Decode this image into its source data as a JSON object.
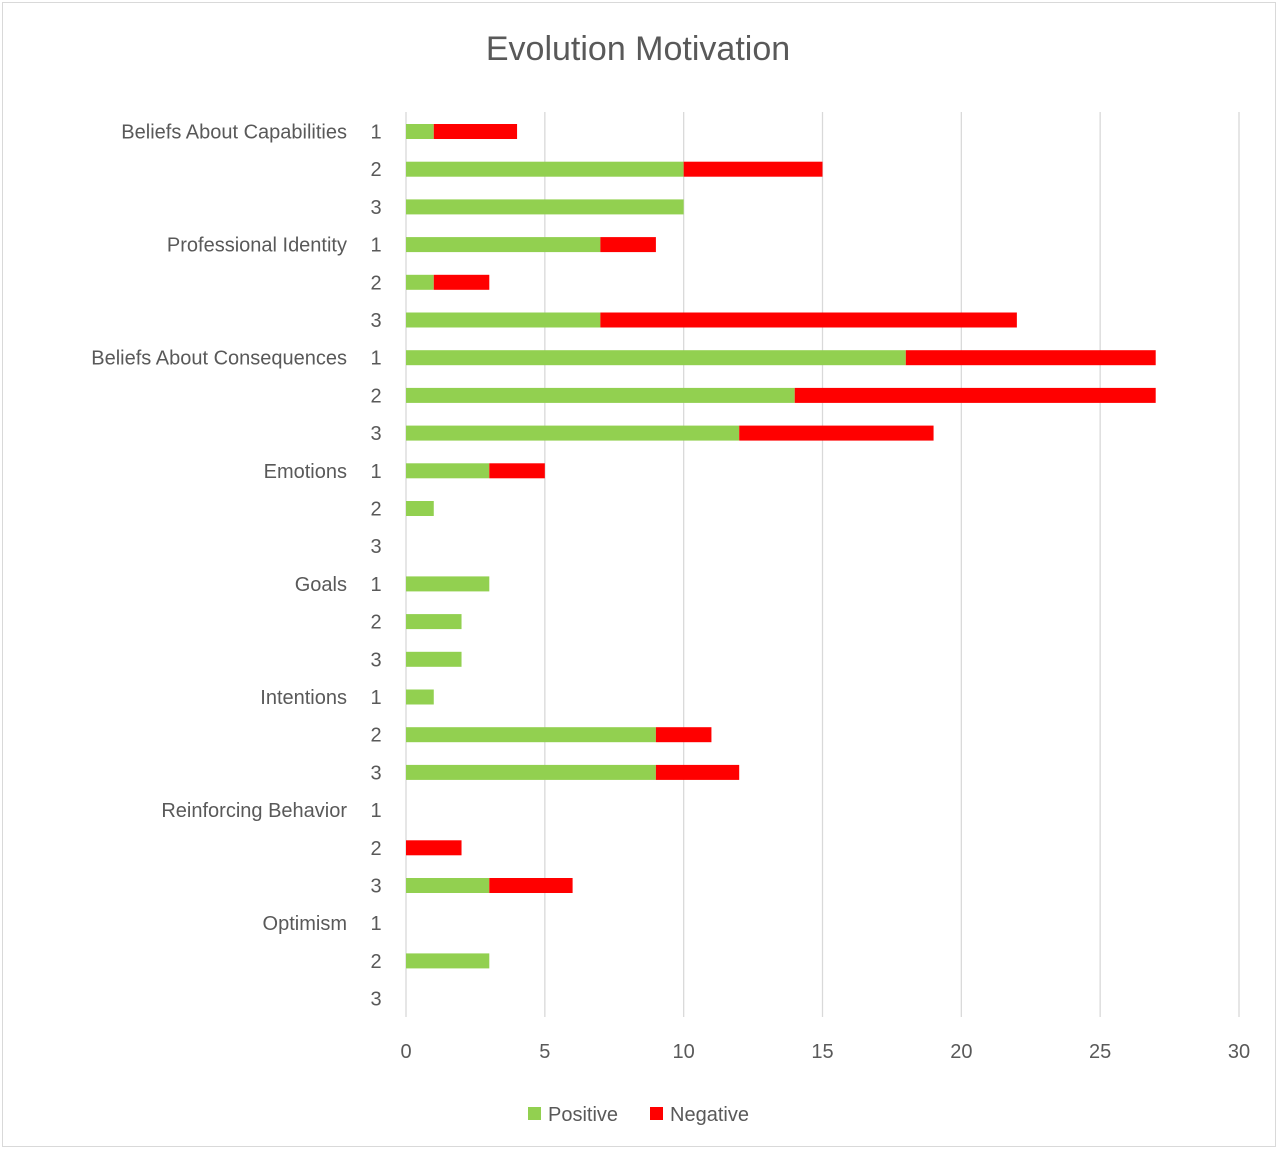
{
  "chart_data": {
    "type": "bar",
    "orientation": "horizontal",
    "stacked": true,
    "title": "Evolution Motivation",
    "xlabel": "",
    "ylabel": "",
    "xlim": [
      0,
      30
    ],
    "x_ticks": [
      "0",
      "5",
      "10",
      "15",
      "20",
      "25",
      "30"
    ],
    "grid": "vertical",
    "legend_position": "bottom",
    "groups": [
      {
        "name": "Beliefs About Capabilities",
        "subs": [
          "1",
          "2",
          "3"
        ]
      },
      {
        "name": "Professional Identity",
        "subs": [
          "1",
          "2",
          "3"
        ]
      },
      {
        "name": "Beliefs About Consequences",
        "subs": [
          "1",
          "2",
          "3"
        ]
      },
      {
        "name": "Emotions",
        "subs": [
          "1",
          "2",
          "3"
        ]
      },
      {
        "name": "Goals",
        "subs": [
          "1",
          "2",
          "3"
        ]
      },
      {
        "name": "Intentions",
        "subs": [
          "1",
          "2",
          "3"
        ]
      },
      {
        "name": "Reinforcing Behavior",
        "subs": [
          "1",
          "2",
          "3"
        ]
      },
      {
        "name": "Optimism",
        "subs": [
          "1",
          "2",
          "3"
        ]
      }
    ],
    "series": [
      {
        "name": "Positive",
        "color": "#92d050",
        "values": [
          1,
          10,
          10,
          7,
          1,
          7,
          18,
          14,
          12,
          3,
          1,
          0,
          3,
          2,
          2,
          1,
          9,
          9,
          0,
          0,
          3,
          0,
          3,
          0
        ]
      },
      {
        "name": "Negative",
        "color": "#ff0000",
        "values": [
          3,
          5,
          0,
          2,
          2,
          15,
          9,
          13,
          7,
          2,
          0,
          0,
          0,
          0,
          0,
          0,
          2,
          3,
          0,
          2,
          3,
          0,
          0,
          0
        ]
      }
    ],
    "gridline_color": "#d9d9d9",
    "text_color": "#595959"
  }
}
